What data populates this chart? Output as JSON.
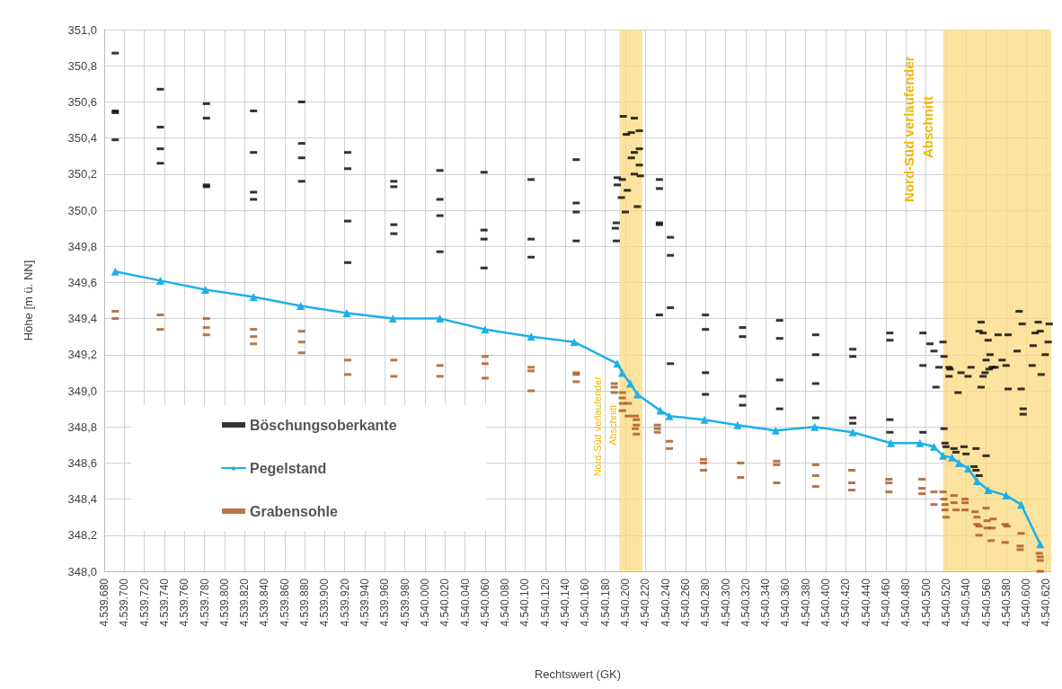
{
  "chart_data": {
    "type": "scatter",
    "xlabel": "Rechtswert (GK)",
    "ylabel": "Höhe [m ü. NN]",
    "xlim": [
      4539680,
      4540625
    ],
    "xticks": [
      {
        "value": 4539680,
        "label": "4.539.680"
      },
      {
        "value": 4539700,
        "label": "4.539.700"
      },
      {
        "value": 4539720,
        "label": "4.539.720"
      },
      {
        "value": 4539740,
        "label": "4.539.740"
      },
      {
        "value": 4539760,
        "label": "4.539.760"
      },
      {
        "value": 4539780,
        "label": "4.539.780"
      },
      {
        "value": 4539800,
        "label": "4.539.800"
      },
      {
        "value": 4539820,
        "label": "4.539.820"
      },
      {
        "value": 4539840,
        "label": "4.539.840"
      },
      {
        "value": 4539860,
        "label": "4.539.860"
      },
      {
        "value": 4539880,
        "label": "4.539.880"
      },
      {
        "value": 4539900,
        "label": "4.539.900"
      },
      {
        "value": 4539920,
        "label": "4.539.920"
      },
      {
        "value": 4539940,
        "label": "4.539.940"
      },
      {
        "value": 4539960,
        "label": "4.539.960"
      },
      {
        "value": 4539980,
        "label": "4.539.980"
      },
      {
        "value": 4540000,
        "label": "4.540.000"
      },
      {
        "value": 4540020,
        "label": "4.540.020"
      },
      {
        "value": 4540040,
        "label": "4.540.040"
      },
      {
        "value": 4540060,
        "label": "4.540.060"
      },
      {
        "value": 4540080,
        "label": "4.540.080"
      },
      {
        "value": 4540100,
        "label": "4.540.100"
      },
      {
        "value": 4540120,
        "label": "4.540.120"
      },
      {
        "value": 4540140,
        "label": "4.540.140"
      },
      {
        "value": 4540160,
        "label": "4.540.160"
      },
      {
        "value": 4540180,
        "label": "4.540.180"
      },
      {
        "value": 4540200,
        "label": "4.540.200"
      },
      {
        "value": 4540220,
        "label": "4.540.220"
      },
      {
        "value": 4540240,
        "label": "4.540.240"
      },
      {
        "value": 4540260,
        "label": "4.540.260"
      },
      {
        "value": 4540280,
        "label": "4.540.280"
      },
      {
        "value": 4540300,
        "label": "4.540.300"
      },
      {
        "value": 4540320,
        "label": "4.540.320"
      },
      {
        "value": 4540340,
        "label": "4.540.340"
      },
      {
        "value": 4540360,
        "label": "4.540.360"
      },
      {
        "value": 4540380,
        "label": "4.540.380"
      },
      {
        "value": 4540400,
        "label": "4.540.400"
      },
      {
        "value": 4540420,
        "label": "4.540.420"
      },
      {
        "value": 4540440,
        "label": "4.540.440"
      },
      {
        "value": 4540460,
        "label": "4.540.460"
      },
      {
        "value": 4540480,
        "label": "4.540.480"
      },
      {
        "value": 4540500,
        "label": "4.540.500"
      },
      {
        "value": 4540520,
        "label": "4.540.520"
      },
      {
        "value": 4540540,
        "label": "4.540.540"
      },
      {
        "value": 4540560,
        "label": "4.540.560"
      },
      {
        "value": 4540580,
        "label": "4.540.580"
      },
      {
        "value": 4540600,
        "label": "4.540.600"
      },
      {
        "value": 4540620,
        "label": "4.540.620"
      }
    ],
    "ylim": [
      348.0,
      351.0
    ],
    "yticks": [
      {
        "value": 348.0,
        "label": "348,0"
      },
      {
        "value": 348.2,
        "label": "348,2"
      },
      {
        "value": 348.4,
        "label": "348,4"
      },
      {
        "value": 348.6,
        "label": "348,6"
      },
      {
        "value": 348.8,
        "label": "348,8"
      },
      {
        "value": 349.0,
        "label": "349,0"
      },
      {
        "value": 349.2,
        "label": "349,2"
      },
      {
        "value": 349.4,
        "label": "349,4"
      },
      {
        "value": 349.6,
        "label": "349,6"
      },
      {
        "value": 349.8,
        "label": "349,8"
      },
      {
        "value": 350.0,
        "label": "350,0"
      },
      {
        "value": 350.2,
        "label": "350,2"
      },
      {
        "value": 350.4,
        "label": "350,4"
      },
      {
        "value": 350.6,
        "label": "350,6"
      },
      {
        "value": 350.8,
        "label": "350,8"
      },
      {
        "value": 351.0,
        "label": "351,0"
      }
    ],
    "grid": true,
    "legend": "bottom left",
    "bands": [
      {
        "axis": "x",
        "from": 4540194,
        "to": 4540217,
        "label": "Nord-Süd verlaufender Abschnitt",
        "color": "#fbd97f"
      },
      {
        "axis": "x",
        "from": 4540517,
        "to": 4540625,
        "label": "Nord-Süd verlaufender Abschnitt",
        "color": "#fbd97f"
      }
    ],
    "series": [
      {
        "name": "Böschungsoberkante",
        "marker": "square",
        "color": "#000000",
        "x": [
          4539691,
          4539691,
          4539691,
          4539691,
          4539736,
          4539736,
          4539736,
          4539736,
          4539782,
          4539782,
          4539782,
          4539782,
          4539829,
          4539829,
          4539829,
          4539829,
          4539877,
          4539877,
          4539877,
          4539877,
          4539923,
          4539923,
          4539923,
          4539923,
          4539969,
          4539969,
          4539969,
          4539969,
          4540015,
          4540015,
          4540015,
          4540015,
          4540059,
          4540059,
          4540059,
          4540059,
          4540106,
          4540106,
          4540106,
          4540151,
          4540151,
          4540151,
          4540151,
          4540192,
          4540191,
          4540190,
          4540191,
          4540192,
          4540197,
          4540196,
          4540198,
          4540200,
          4540201,
          4540202,
          4540206,
          4540206,
          4540209,
          4540209,
          4540209,
          4540212,
          4540214,
          4540214,
          4540214,
          4540215,
          4540234,
          4540234,
          4540234,
          4540234,
          4540234,
          4540245,
          4540245,
          4540245,
          4540245,
          4540280,
          4540280,
          4540280,
          4540280,
          4540317,
          4540317,
          4540317,
          4540317,
          4540354,
          4540354,
          4540354,
          4540354,
          4540390,
          4540390,
          4540390,
          4540390,
          4540427,
          4540427,
          4540427,
          4540427,
          4540464,
          4540464,
          4540464,
          4540464,
          4540497,
          4540497,
          4540497,
          4540504,
          4540508,
          4540510,
          4540513,
          4540517,
          4540518,
          4540518,
          4540519,
          4540520,
          4540523,
          4540523,
          4540524,
          4540535,
          4540532,
          4540542,
          4540545,
          4540555,
          4540553,
          4540557,
          4540555,
          4540557,
          4540559,
          4540560,
          4540562,
          4540563,
          4540564,
          4540566,
          4540569,
          4540572,
          4540576,
          4540580,
          4540582,
          4540582,
          4540591,
          4540593,
          4540596,
          4540595,
          4540597,
          4540597,
          4540606,
          4540607,
          4540609,
          4540612,
          4540614,
          4540615,
          4540619,
          4540622,
          4540623,
          4540528,
          4540530,
          4540538,
          4540540,
          4540550,
          4540560,
          4540548,
          4540550,
          4540553
        ],
        "values": [
          350.87,
          350.55,
          350.54,
          350.39,
          350.67,
          350.46,
          350.34,
          350.26,
          350.59,
          350.51,
          350.14,
          350.13,
          350.55,
          350.32,
          350.1,
          350.06,
          350.6,
          350.37,
          350.29,
          350.16,
          350.32,
          350.23,
          349.94,
          349.71,
          350.16,
          350.13,
          349.92,
          349.87,
          350.22,
          350.06,
          349.97,
          349.77,
          350.21,
          349.89,
          349.84,
          349.68,
          350.17,
          349.84,
          349.74,
          350.28,
          350.04,
          349.99,
          349.83,
          350.18,
          349.93,
          349.9,
          349.83,
          350.14,
          350.17,
          350.07,
          350.52,
          349.99,
          350.42,
          350.11,
          350.43,
          350.29,
          350.32,
          350.51,
          350.2,
          350.02,
          350.34,
          350.44,
          350.25,
          350.19,
          350.17,
          350.12,
          349.93,
          349.92,
          349.42,
          349.85,
          349.75,
          349.46,
          349.15,
          349.42,
          349.34,
          349.1,
          348.98,
          349.35,
          349.3,
          348.97,
          348.92,
          349.39,
          349.29,
          349.06,
          348.9,
          349.31,
          349.2,
          349.04,
          348.85,
          349.23,
          349.19,
          348.85,
          348.82,
          349.32,
          349.28,
          348.84,
          348.77,
          349.32,
          349.14,
          348.77,
          349.26,
          349.22,
          349.02,
          349.13,
          349.27,
          349.19,
          348.79,
          348.71,
          348.69,
          349.13,
          349.08,
          349.12,
          349.1,
          348.99,
          349.08,
          349.13,
          349.38,
          349.33,
          349.32,
          349.02,
          349.08,
          349.1,
          349.17,
          349.28,
          349.12,
          349.2,
          349.13,
          349.13,
          349.31,
          349.17,
          349.14,
          349.31,
          349.01,
          349.22,
          349.44,
          349.37,
          349.01,
          348.9,
          348.87,
          349.14,
          349.25,
          349.32,
          349.38,
          349.33,
          349.09,
          349.2,
          349.27,
          349.37,
          348.68,
          348.66,
          348.69,
          348.65,
          348.68,
          348.64,
          348.58,
          348.56,
          348.53
        ]
      },
      {
        "name": "Pegelstand",
        "type": "line",
        "marker": "triangle",
        "color": "#1fb0e8",
        "x": [
          4539691,
          4539736,
          4539781,
          4539829,
          4539876,
          4539922,
          4539968,
          4540015,
          4540060,
          4540106,
          4540149,
          4540192,
          4540197,
          4540205,
          4540212,
          4540235,
          4540244,
          4540279,
          4540312,
          4540350,
          4540389,
          4540427,
          4540465,
          4540494,
          4540508,
          4540517,
          4540526,
          4540533,
          4540542,
          4540551,
          4540562,
          4540580,
          4540595,
          4540614
        ],
        "values": [
          349.66,
          349.61,
          349.56,
          349.52,
          349.47,
          349.43,
          349.4,
          349.4,
          349.34,
          349.3,
          349.27,
          349.15,
          349.1,
          349.04,
          348.98,
          348.89,
          348.86,
          348.84,
          348.81,
          348.78,
          348.8,
          348.77,
          348.71,
          348.71,
          348.69,
          348.64,
          348.63,
          348.6,
          348.57,
          348.5,
          348.45,
          348.42,
          348.37,
          348.15
        ]
      },
      {
        "name": "Grabensohle",
        "marker": "square",
        "color": "#a8531a",
        "x": [
          4539691,
          4539691,
          4539736,
          4539736,
          4539782,
          4539782,
          4539782,
          4539829,
          4539829,
          4539829,
          4539877,
          4539877,
          4539877,
          4539923,
          4539923,
          4539969,
          4539969,
          4540015,
          4540015,
          4540060,
          4540060,
          4540060,
          4540106,
          4540106,
          4540106,
          4540151,
          4540151,
          4540151,
          4540189,
          4540189,
          4540189,
          4540197,
          4540197,
          4540197,
          4540197,
          4540203,
          4540203,
          4540210,
          4540210,
          4540211,
          4540211,
          4540211,
          4540232,
          4540232,
          4540232,
          4540244,
          4540244,
          4540278,
          4540278,
          4540278,
          4540315,
          4540315,
          4540351,
          4540351,
          4540351,
          4540390,
          4540390,
          4540390,
          4540426,
          4540426,
          4540426,
          4540463,
          4540463,
          4540463,
          4540496,
          4540496,
          4540496,
          4540508,
          4540508,
          4540517,
          4540518,
          4540519,
          4540519,
          4540520,
          4540528,
          4540528,
          4540530,
          4540539,
          4540539,
          4540539,
          4540549,
          4540551,
          4540551,
          4540553,
          4540553,
          4540560,
          4540561,
          4540561,
          4540567,
          4540566,
          4540565,
          4540579,
          4540581,
          4540579,
          4540595,
          4540594,
          4540594,
          4540613,
          4540614,
          4540614,
          4540614
        ],
        "values": [
          349.44,
          349.4,
          349.42,
          349.34,
          349.4,
          349.35,
          349.31,
          349.34,
          349.3,
          349.26,
          349.33,
          349.27,
          349.21,
          349.17,
          349.09,
          349.17,
          349.08,
          349.14,
          349.08,
          349.19,
          349.15,
          349.07,
          349.13,
          349.11,
          349.0,
          349.1,
          349.09,
          349.05,
          349.04,
          349.02,
          348.99,
          348.99,
          348.96,
          348.93,
          348.89,
          348.93,
          348.86,
          348.86,
          348.79,
          348.84,
          348.81,
          348.76,
          348.81,
          348.79,
          348.77,
          348.72,
          348.68,
          348.62,
          348.6,
          348.56,
          348.6,
          348.52,
          348.61,
          348.59,
          348.49,
          348.59,
          348.53,
          348.47,
          348.56,
          348.49,
          348.45,
          348.51,
          348.49,
          348.44,
          348.51,
          348.46,
          348.43,
          348.44,
          348.37,
          348.44,
          348.4,
          348.37,
          348.34,
          348.3,
          348.42,
          348.38,
          348.34,
          348.4,
          348.38,
          348.34,
          348.33,
          348.3,
          348.26,
          348.25,
          348.2,
          348.35,
          348.28,
          348.24,
          348.29,
          348.24,
          348.17,
          348.26,
          348.25,
          348.16,
          348.21,
          348.14,
          348.12,
          348.1,
          348.08,
          348.06,
          348.0
        ]
      }
    ]
  }
}
